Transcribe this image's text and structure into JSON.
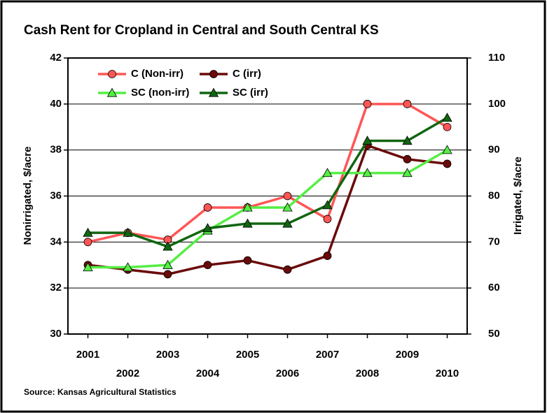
{
  "chart_data": {
    "type": "line",
    "title": "Cash Rent for Cropland in Central and South Central KS",
    "ylabel": "Nonirrigated, $/acre",
    "y2label": "Irrigated, $/acre",
    "source": "Source:  Kansas Agricultural Statistics",
    "categories": [
      "2001",
      "2002",
      "2003",
      "2004",
      "2005",
      "2006",
      "2007",
      "2008",
      "2009",
      "2010"
    ],
    "ylim": [
      30,
      42
    ],
    "yticks": [
      30,
      32,
      34,
      36,
      38,
      40,
      42
    ],
    "y2lim": [
      50,
      110
    ],
    "y2ticks": [
      50,
      60,
      70,
      80,
      90,
      100,
      110
    ],
    "grid": true,
    "legend": "upper left",
    "series": [
      {
        "name": "C (Non-irr)",
        "color": "#ff5555",
        "marker": "circle",
        "axis": "y",
        "values": [
          34.0,
          34.4,
          34.1,
          35.5,
          35.5,
          36.0,
          35.0,
          40.0,
          40.0,
          39.0
        ]
      },
      {
        "name": "C (irr)",
        "color": "#6b0a0a",
        "marker": "circle",
        "axis": "y2",
        "values": [
          65,
          64,
          63,
          65,
          66,
          64,
          67,
          91,
          88,
          87
        ]
      },
      {
        "name": "SC (non-irr)",
        "color": "#55ee44",
        "marker": "triangle",
        "axis": "y",
        "values": [
          32.9,
          32.9,
          33.0,
          34.5,
          35.5,
          35.5,
          37.0,
          37.0,
          37.0,
          38.0
        ]
      },
      {
        "name": "SC (irr)",
        "color": "#116611",
        "marker": "triangle",
        "axis": "y2",
        "values": [
          72,
          72,
          69,
          73,
          74,
          74,
          78,
          92,
          92,
          97
        ]
      }
    ]
  }
}
